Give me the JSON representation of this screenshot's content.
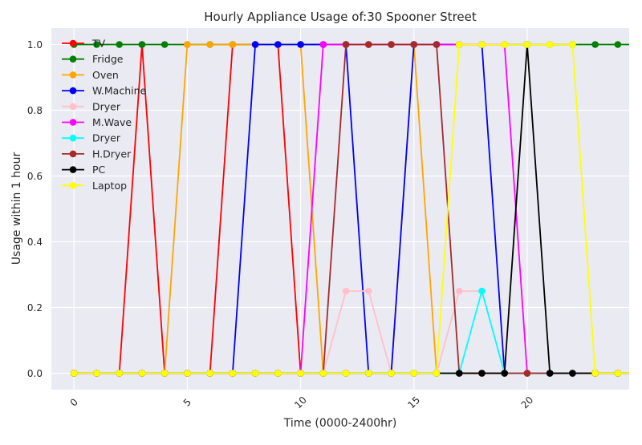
{
  "chart_data": {
    "type": "line",
    "title": "Hourly Appliance Usage of:30 Spooner Street",
    "xlabel": "Time (0000-2400hr)",
    "ylabel": "Usage within 1 hour",
    "xlim": [
      -1,
      24.5
    ],
    "ylim": [
      -0.05,
      1.05
    ],
    "xticks": [
      0,
      5,
      10,
      15,
      20
    ],
    "yticks": [
      0.0,
      0.2,
      0.4,
      0.6,
      0.8,
      1.0
    ],
    "ytick_labels": [
      "0.0",
      "0.2",
      "0.4",
      "0.6",
      "0.8",
      "1.0"
    ],
    "grid": true,
    "legend_position": "top-left",
    "background": "#eaeaf2",
    "x": [
      0,
      1,
      2,
      3,
      4,
      5,
      6,
      7,
      8,
      9,
      10,
      11,
      12,
      13,
      14,
      15,
      16,
      17,
      18,
      19,
      20,
      21,
      22,
      23,
      24,
      25
    ],
    "series": [
      {
        "name": "TV",
        "color": "#ff0000",
        "values": [
          0,
          0,
          0,
          1,
          0,
          0,
          0,
          1,
          1,
          1,
          0,
          0,
          0,
          0,
          0,
          0,
          0,
          0,
          0,
          0,
          0,
          0,
          0,
          0,
          0,
          0
        ]
      },
      {
        "name": "Fridge",
        "color": "#008000",
        "values": [
          1,
          1,
          1,
          1,
          1,
          1,
          1,
          1,
          1,
          1,
          1,
          1,
          1,
          1,
          1,
          1,
          1,
          1,
          1,
          1,
          1,
          1,
          1,
          1,
          1,
          1
        ]
      },
      {
        "name": "Oven",
        "color": "#ffa500",
        "values": [
          0,
          0,
          0,
          0,
          0,
          1,
          1,
          1,
          1,
          1,
          1,
          0,
          0,
          0,
          0,
          1,
          0,
          0,
          0,
          0,
          0,
          0,
          0,
          0,
          0,
          0
        ]
      },
      {
        "name": "W.Machine",
        "color": "#0000ff",
        "values": [
          0,
          0,
          0,
          0,
          0,
          0,
          0,
          0,
          1,
          1,
          1,
          1,
          1,
          0,
          0,
          1,
          1,
          1,
          1,
          0,
          0,
          0,
          0,
          0,
          0,
          0
        ]
      },
      {
        "name": "Dryer",
        "color": "#ffc0cb",
        "values": [
          0,
          0,
          0,
          0,
          0,
          0,
          0,
          0,
          0,
          0,
          0,
          0,
          0.25,
          0.25,
          0,
          0,
          0,
          0.25,
          0.25,
          0,
          0,
          0,
          0,
          0,
          0,
          0
        ]
      },
      {
        "name": "M.Wave",
        "color": "#ff00ff",
        "values": [
          0,
          0,
          0,
          0,
          0,
          0,
          0,
          0,
          0,
          0,
          0,
          1,
          1,
          1,
          1,
          1,
          1,
          1,
          1,
          1,
          0,
          0,
          0,
          0,
          0,
          0
        ]
      },
      {
        "name": "Dryer",
        "color": "#00ffff",
        "values": [
          0,
          0,
          0,
          0,
          0,
          0,
          0,
          0,
          0,
          0,
          0,
          0,
          0,
          0,
          0,
          0,
          0,
          0,
          0.25,
          0,
          0,
          0,
          0,
          0,
          0,
          0
        ]
      },
      {
        "name": "H.Dryer",
        "color": "#a52a2a",
        "values": [
          0,
          0,
          0,
          0,
          0,
          0,
          0,
          0,
          0,
          0,
          0,
          0,
          1,
          1,
          1,
          1,
          1,
          0,
          0,
          0,
          0,
          0,
          0,
          0,
          0,
          0
        ]
      },
      {
        "name": "PC",
        "color": "#000000",
        "values": [
          0,
          0,
          0,
          0,
          0,
          0,
          0,
          0,
          0,
          0,
          0,
          0,
          0,
          0,
          0,
          0,
          0,
          0,
          0,
          0,
          1,
          0,
          0,
          0,
          0,
          0
        ]
      },
      {
        "name": "Laptop",
        "color": "#ffff00",
        "values": [
          0,
          0,
          0,
          0,
          0,
          0,
          0,
          0,
          0,
          0,
          0,
          0,
          0,
          0,
          0,
          0,
          0,
          1,
          1,
          1,
          1,
          1,
          1,
          0,
          0,
          0
        ]
      }
    ]
  }
}
